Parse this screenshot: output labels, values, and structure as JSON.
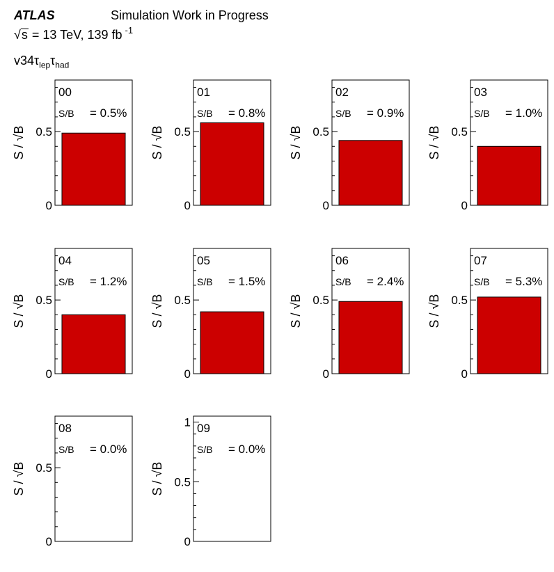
{
  "header": {
    "experiment": "ATLAS",
    "status": "Simulation Work in Progress",
    "energy_prefix": "s",
    "energy_text": "= 13 TeV, 139 fb",
    "lumi_exponent": "-1",
    "channel_version": "v34",
    "channel_tau": "τ",
    "channel_lep": "lep",
    "channel_had": "had"
  },
  "colors": {
    "bar": "#cc0000"
  },
  "chart_data": {
    "type": "bar",
    "ylabel": "S / √B",
    "ylim": [
      0,
      0.85
    ],
    "y_ticks": [
      "0",
      "0.5"
    ],
    "panels": [
      {
        "label": "00",
        "sb": "S/B",
        "sb_value": "= 0.5%",
        "value": 0.49
      },
      {
        "label": "01",
        "sb": "S/B",
        "sb_value": "= 0.8%",
        "value": 0.56
      },
      {
        "label": "02",
        "sb": "S/B",
        "sb_value": "= 0.9%",
        "value": 0.44
      },
      {
        "label": "03",
        "sb": "S/B",
        "sb_value": "= 1.0%",
        "value": 0.4
      },
      {
        "label": "04",
        "sb": "S/B",
        "sb_value": "= 1.2%",
        "value": 0.4
      },
      {
        "label": "05",
        "sb": "S/B",
        "sb_value": "= 1.5%",
        "value": 0.42
      },
      {
        "label": "06",
        "sb": "S/B",
        "sb_value": "= 2.4%",
        "value": 0.49
      },
      {
        "label": "07",
        "sb": "S/B",
        "sb_value": "= 5.3%",
        "value": 0.52
      },
      {
        "label": "08",
        "sb": "S/B",
        "sb_value": "= 0.0%",
        "value": 0
      },
      {
        "label": "09",
        "sb": "S/B",
        "sb_value": "= 0.0%",
        "value": 0,
        "ylim": [
          0,
          1.05
        ],
        "y_ticks": [
          "0",
          "0.5",
          "1"
        ]
      }
    ]
  }
}
